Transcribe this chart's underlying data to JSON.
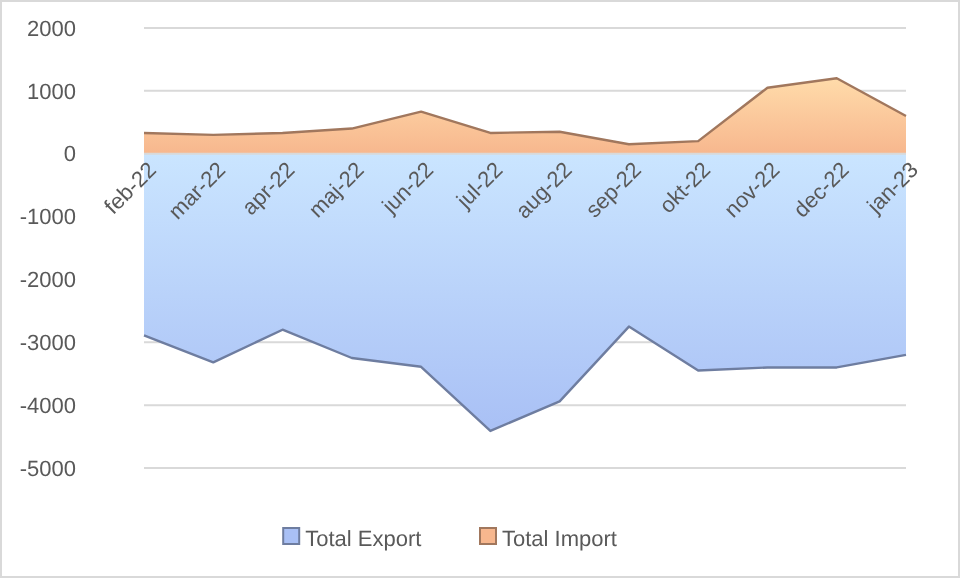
{
  "chart_data": {
    "type": "area",
    "categories": [
      "feb-22",
      "mar-22",
      "apr-22",
      "maj-22",
      "jun-22",
      "jul-22",
      "aug-22",
      "sep-22",
      "okt-22",
      "nov-22",
      "dec-22",
      "jan-23"
    ],
    "series": [
      {
        "name": "Total Export",
        "color": "#a9c0f5",
        "values": [
          -2890,
          -3320,
          -2800,
          -3250,
          -3390,
          -4410,
          -3940,
          -2750,
          -3450,
          -3400,
          -3400,
          -3200
        ]
      },
      {
        "name": "Total Import",
        "color": "#f7b78e",
        "values": [
          330,
          300,
          330,
          400,
          670,
          330,
          350,
          150,
          200,
          1050,
          1200,
          600
        ]
      }
    ],
    "ylim": [
      -5000,
      2000
    ],
    "yticks": [
      -5000,
      -4000,
      -3000,
      -2000,
      -1000,
      0,
      1000,
      2000
    ],
    "grid": "y",
    "legend": "bottom"
  }
}
